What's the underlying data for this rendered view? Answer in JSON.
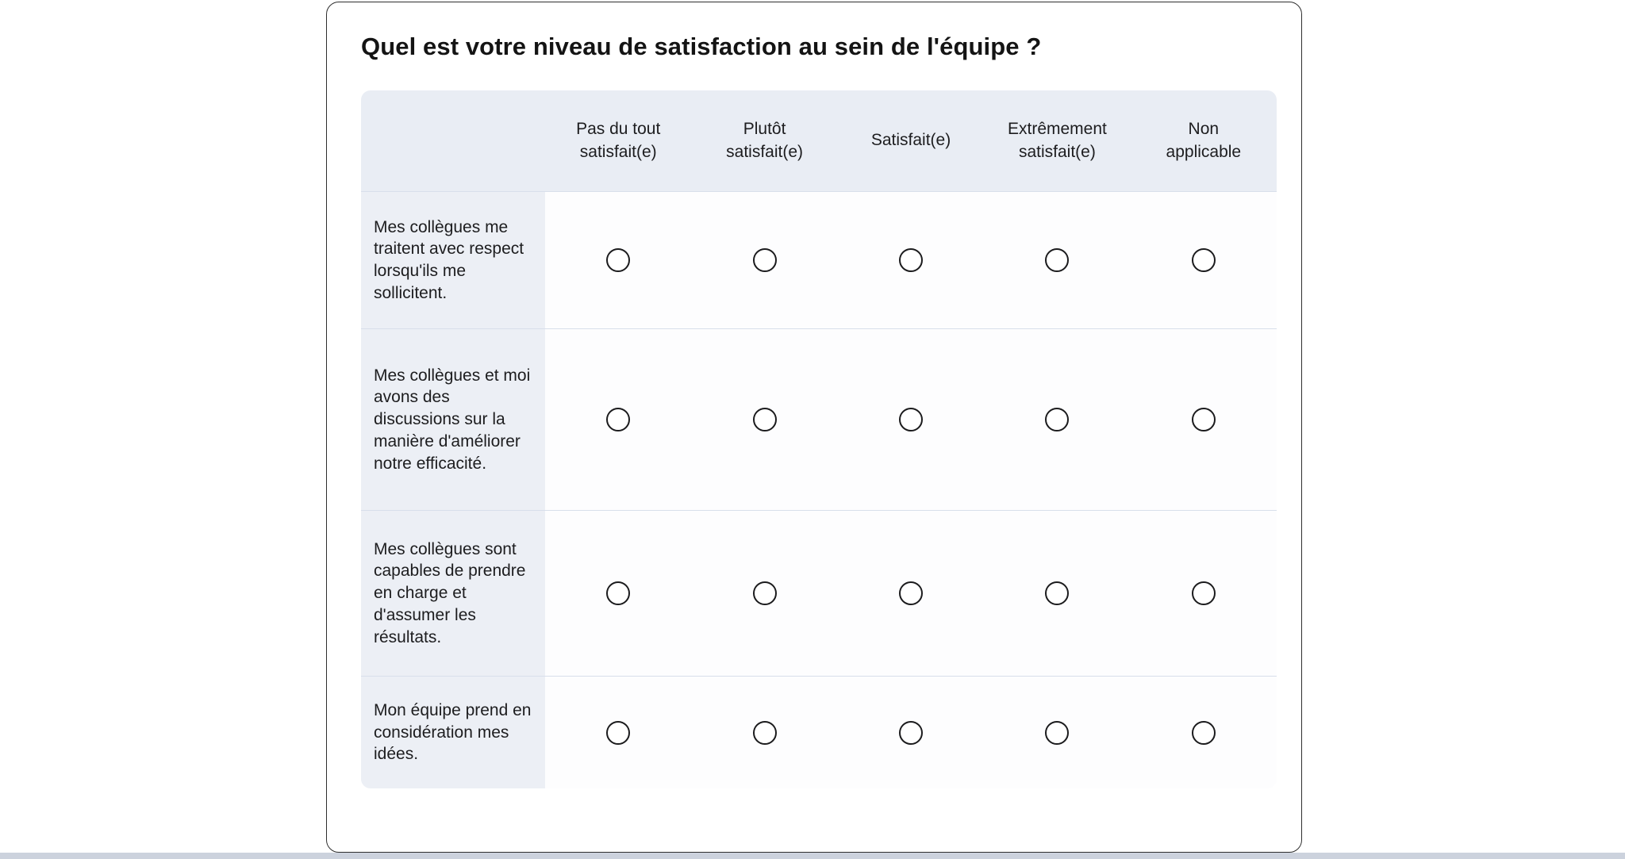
{
  "question": {
    "title": "Quel est votre niveau de satisfaction au sein de l'équipe ?"
  },
  "matrix": {
    "columns": [
      "Pas du tout\nsatisfait(e)",
      "Plutôt\nsatisfait(e)",
      "Satisfait(e)",
      "Extrêmement\nsatisfait(e)",
      "Non\napplicable"
    ],
    "rows": [
      {
        "label": "Mes collègues me traitent avec respect lorsqu'ils me sollicitent.",
        "selected": null
      },
      {
        "label": "Mes collègues et moi avons des discussions sur la manière d'améliorer notre efficacité.",
        "selected": null
      },
      {
        "label": "Mes collègues sont capables de prendre en charge et d'assumer les résultats.",
        "selected": null
      },
      {
        "label": "Mon équipe prend en considération mes idées.",
        "selected": null
      }
    ],
    "colors": {
      "header_bg": "#e9edf4",
      "label_bg": "#eceff5",
      "cell_bg": "#fdfdfe",
      "divider": "#d8dfeb",
      "radio_stroke": "#1b1b1d",
      "card_border": "#2e2e2e",
      "bottom_bar": "#ccd2dd"
    }
  }
}
